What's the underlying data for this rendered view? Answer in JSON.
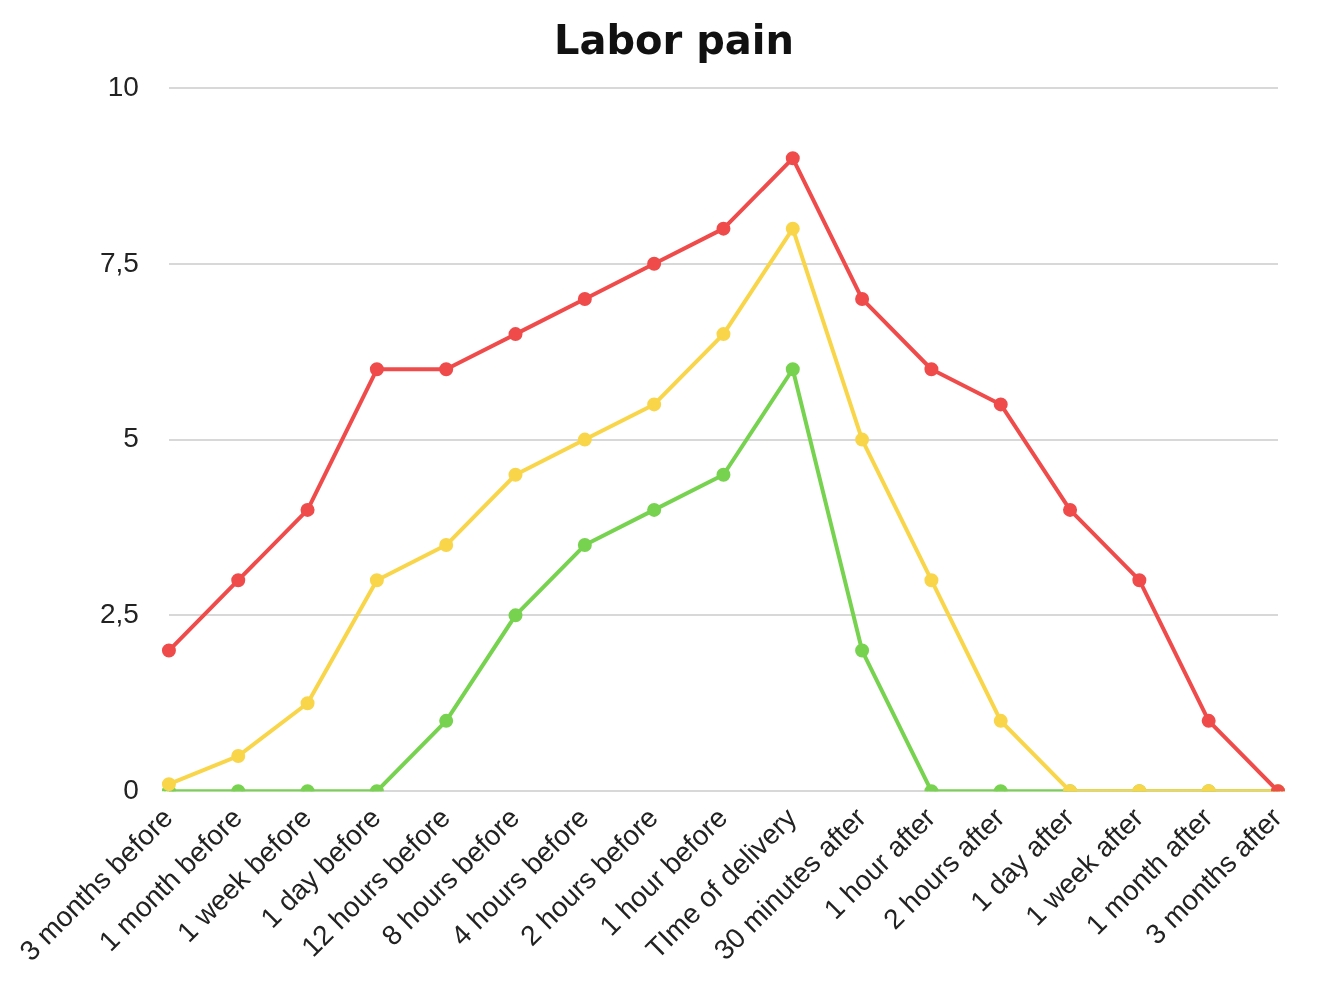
{
  "chart_data": {
    "type": "line",
    "title": "Labor pain",
    "categories": [
      "3 months before",
      "1 month before",
      "1 week before",
      "1 day before",
      "12 hours before",
      "8 hours before",
      "4 hours before",
      "2 hours before",
      "1 hour before",
      "TIme of delivery",
      "30 minutes after",
      "1 hour after",
      "2 hours after",
      "1 day after",
      "1 week after",
      "1 month after",
      "3 months after"
    ],
    "series": [
      {
        "color": "#f04b4b",
        "values": [
          2,
          3,
          4,
          6,
          6,
          6.5,
          7,
          7.5,
          8,
          9,
          7,
          6,
          5.5,
          4,
          3,
          1,
          0
        ]
      },
      {
        "color": "#f9d54a",
        "values": [
          0.1,
          0.5,
          1.25,
          3,
          3.5,
          4.5,
          5,
          5.5,
          6.5,
          8,
          5,
          3,
          1,
          0,
          0,
          0,
          0
        ]
      },
      {
        "color": "#77d34f",
        "values": [
          0,
          0,
          0,
          0,
          1,
          2.5,
          3.5,
          4,
          4.5,
          6,
          2,
          0,
          0,
          0,
          0,
          0,
          0
        ]
      }
    ],
    "ylim": [
      0,
      10
    ],
    "yticks": [
      0,
      {
        "value": 2.5,
        "label": "2,5"
      },
      5,
      {
        "value": 7.5,
        "label": "7,5"
      },
      10
    ],
    "grid": "y",
    "legend": false,
    "marker": "circle",
    "line_style": "solid"
  }
}
